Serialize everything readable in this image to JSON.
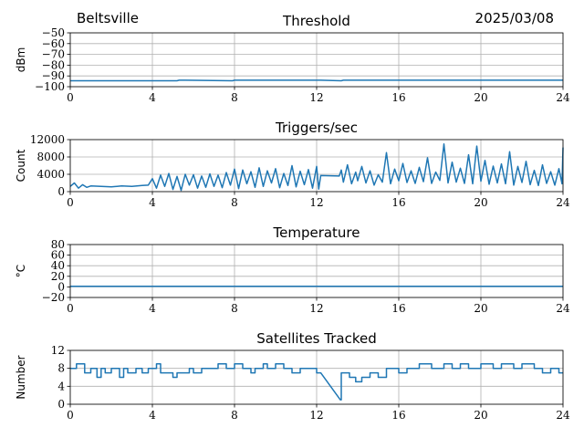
{
  "header": {
    "location": "Beltsville",
    "date": "2025/03/08"
  },
  "chart_data": [
    {
      "type": "line",
      "title": "Threshold",
      "ylabel": "dBm",
      "xlim": [
        0,
        24
      ],
      "ylim": [
        -100,
        -50
      ],
      "xticks": [
        "0",
        "4",
        "8",
        "12",
        "16",
        "20",
        "24"
      ],
      "yticks": [
        "−100",
        "−90",
        "−80",
        "−70",
        "−60",
        "−50"
      ],
      "ytick_values": [
        -100,
        -90,
        -80,
        -70,
        -60,
        -50
      ],
      "grid": true,
      "color": "#1f77b4",
      "x": [
        0,
        5.2,
        5.3,
        5.6,
        7.9,
        8.0,
        12.2,
        13.2,
        13.3,
        24
      ],
      "y": [
        -94.5,
        -94.5,
        -94,
        -94,
        -94.5,
        -94,
        -94,
        -94.5,
        -94,
        -94
      ]
    },
    {
      "type": "line",
      "title": "Triggers/sec",
      "ylabel": "Count",
      "xlim": [
        0,
        24
      ],
      "ylim": [
        0,
        12000
      ],
      "xticks": [
        "0",
        "4",
        "8",
        "12",
        "16",
        "20",
        "24"
      ],
      "yticks": [
        "0",
        "4000",
        "8000",
        "12000"
      ],
      "ytick_values": [
        0,
        4000,
        8000,
        12000
      ],
      "grid": true,
      "color": "#1f77b4",
      "x": [
        0,
        0.2,
        0.4,
        0.6,
        0.8,
        1.0,
        1.5,
        2.0,
        2.5,
        3.0,
        3.5,
        3.8,
        4.0,
        4.2,
        4.4,
        4.6,
        4.8,
        5.0,
        5.2,
        5.4,
        5.6,
        5.8,
        6.0,
        6.2,
        6.4,
        6.6,
        6.8,
        7.0,
        7.2,
        7.4,
        7.6,
        7.8,
        8.0,
        8.2,
        8.4,
        8.6,
        8.8,
        9.0,
        9.2,
        9.4,
        9.6,
        9.8,
        10.0,
        10.2,
        10.4,
        10.6,
        10.8,
        11.0,
        11.2,
        11.4,
        11.6,
        11.8,
        12.0,
        12.1,
        12.2,
        13.1,
        13.2,
        13.3,
        13.5,
        13.7,
        13.9,
        14.0,
        14.2,
        14.4,
        14.6,
        14.8,
        15.0,
        15.2,
        15.4,
        15.6,
        15.8,
        16.0,
        16.2,
        16.4,
        16.6,
        16.8,
        17.0,
        17.2,
        17.4,
        17.6,
        17.8,
        18.0,
        18.2,
        18.4,
        18.6,
        18.8,
        19.0,
        19.2,
        19.4,
        19.6,
        19.8,
        20.0,
        20.2,
        20.4,
        20.6,
        20.8,
        21.0,
        21.2,
        21.4,
        21.6,
        21.8,
        22.0,
        22.2,
        22.4,
        22.6,
        22.8,
        23.0,
        23.2,
        23.4,
        23.6,
        23.8,
        23.95,
        24.0
      ],
      "y": [
        1200,
        2000,
        800,
        1600,
        1000,
        1300,
        1200,
        1100,
        1300,
        1200,
        1400,
        1500,
        3000,
        800,
        3800,
        1200,
        4200,
        500,
        3500,
        300,
        4000,
        1500,
        3900,
        800,
        3600,
        1000,
        4100,
        1200,
        3800,
        900,
        4400,
        1500,
        5200,
        700,
        5000,
        1800,
        4600,
        1000,
        5500,
        1200,
        4800,
        2000,
        5300,
        900,
        4200,
        1400,
        6000,
        1100,
        4700,
        1600,
        5100,
        800,
        5800,
        600,
        3700,
        3600,
        5000,
        2200,
        6200,
        1800,
        4500,
        2500,
        5800,
        2000,
        4800,
        1500,
        3900,
        2200,
        9000,
        1800,
        5200,
        2500,
        6500,
        2100,
        4800,
        1900,
        5600,
        2300,
        7800,
        1900,
        4500,
        2600,
        11000,
        2000,
        6800,
        2200,
        5400,
        1900,
        8500,
        1800,
        10500,
        2400,
        7200,
        1700,
        5900,
        2000,
        6400,
        1800,
        9200,
        1500,
        5800,
        2100,
        7000,
        1600,
        4900,
        1400,
        6200,
        1900,
        4600,
        1500,
        5300,
        1800,
        10200
      ]
    },
    {
      "type": "line",
      "title": "Temperature",
      "ylabel": "°C",
      "xlim": [
        0,
        24
      ],
      "ylim": [
        -20,
        80
      ],
      "xticks": [
        "0",
        "4",
        "8",
        "12",
        "16",
        "20",
        "24"
      ],
      "yticks": [
        "−20",
        "0",
        "20",
        "40",
        "60",
        "80"
      ],
      "ytick_values": [
        -20,
        0,
        20,
        40,
        60,
        80
      ],
      "grid": true,
      "color": "#1f77b4",
      "x": [
        0,
        24
      ],
      "y": [
        1,
        1
      ]
    },
    {
      "type": "line",
      "title": "Satellites Tracked",
      "ylabel": "Number",
      "xlim": [
        0,
        24
      ],
      "ylim": [
        0,
        12
      ],
      "xticks": [
        "0",
        "4",
        "8",
        "12",
        "16",
        "20",
        "24"
      ],
      "yticks": [
        "0",
        "4",
        "8",
        "12"
      ],
      "ytick_values": [
        0,
        4,
        8,
        12
      ],
      "grid": true,
      "color": "#1f77b4",
      "x": [
        0,
        0.3,
        0.3,
        0.7,
        0.7,
        1.0,
        1.0,
        1.3,
        1.3,
        1.5,
        1.5,
        1.7,
        1.7,
        2.0,
        2.0,
        2.4,
        2.4,
        2.6,
        2.6,
        2.8,
        2.8,
        3.2,
        3.2,
        3.5,
        3.5,
        3.8,
        3.8,
        4.2,
        4.2,
        4.4,
        4.4,
        4.6,
        4.6,
        5.0,
        5.0,
        5.2,
        5.2,
        5.8,
        5.8,
        6.0,
        6.0,
        6.4,
        6.4,
        6.8,
        6.8,
        7.2,
        7.2,
        7.6,
        7.6,
        8.0,
        8.0,
        8.4,
        8.4,
        8.8,
        8.8,
        9.0,
        9.0,
        9.4,
        9.4,
        9.6,
        9.6,
        10.0,
        10.0,
        10.4,
        10.4,
        10.8,
        10.8,
        11.2,
        11.2,
        11.6,
        11.6,
        12.0,
        12.0,
        12.2,
        13.15,
        13.2,
        13.2,
        13.6,
        13.6,
        13.9,
        13.9,
        14.2,
        14.2,
        14.6,
        14.6,
        15.0,
        15.0,
        15.4,
        15.4,
        16.0,
        16.0,
        16.4,
        16.4,
        17.0,
        17.0,
        17.6,
        17.6,
        18.2,
        18.2,
        18.6,
        18.6,
        19.0,
        19.0,
        19.4,
        19.4,
        20.0,
        20.0,
        20.6,
        20.6,
        21.0,
        21.0,
        21.6,
        21.6,
        22.0,
        22.0,
        22.6,
        22.6,
        23.0,
        23.0,
        23.4,
        23.4,
        23.8,
        23.8,
        24.0
      ],
      "y": [
        8,
        8,
        9,
        9,
        7,
        7,
        8,
        8,
        6,
        6,
        8,
        8,
        7,
        7,
        8,
        8,
        6,
        6,
        8,
        8,
        7,
        7,
        8,
        8,
        7,
        7,
        8,
        8,
        9,
        9,
        7,
        7,
        7,
        7,
        6,
        6,
        7,
        7,
        8,
        8,
        7,
        7,
        8,
        8,
        8,
        8,
        9,
        9,
        8,
        8,
        9,
        9,
        8,
        8,
        7,
        7,
        8,
        8,
        9,
        9,
        8,
        8,
        9,
        9,
        8,
        8,
        7,
        7,
        8,
        8,
        8,
        8,
        7,
        7,
        1,
        1,
        7,
        7,
        6,
        6,
        5,
        5,
        6,
        6,
        7,
        7,
        6,
        6,
        8,
        8,
        7,
        7,
        8,
        8,
        9,
        9,
        8,
        8,
        9,
        9,
        8,
        8,
        9,
        9,
        8,
        8,
        9,
        9,
        8,
        8,
        9,
        9,
        8,
        8,
        9,
        9,
        8,
        8,
        7,
        7,
        8,
        8,
        7,
        7
      ]
    }
  ]
}
